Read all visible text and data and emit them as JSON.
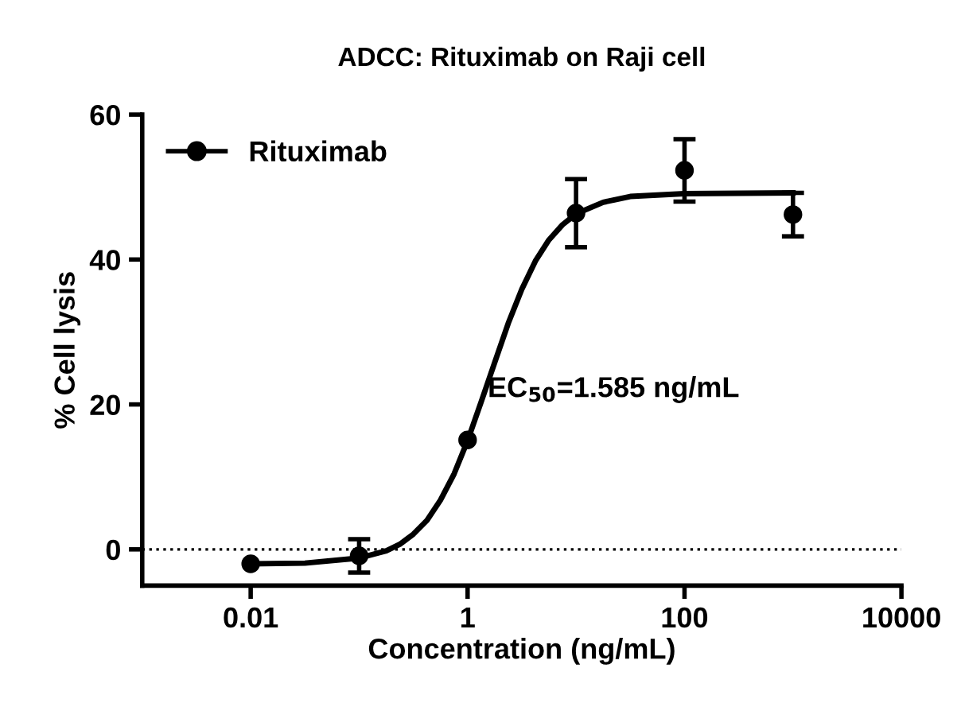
{
  "chart_data": {
    "type": "scatter",
    "title": "ADCC: Rituximab on Raji cell",
    "xlabel": "Concentration (ng/mL)",
    "ylabel": "% Cell lysis",
    "log": "x",
    "xlim": [
      0.001,
      10000
    ],
    "xticks": [
      0.01,
      1,
      100,
      10000
    ],
    "ylim": [
      -5,
      60
    ],
    "yticks": [
      0,
      20,
      40,
      60
    ],
    "grid": false,
    "legend": "top left",
    "series": [
      {
        "name": "Rituximab",
        "marker": "circle",
        "color": "#000000",
        "x": [
          0.01,
          0.1,
          1,
          10,
          100,
          1000
        ],
        "values": [
          -2,
          -0.9,
          15.1,
          46.4,
          52.3,
          46.2
        ],
        "errors": [
          null,
          2.3,
          null,
          4.7,
          4.3,
          3
        ]
      },
      {
        "type": "line",
        "marker": "none",
        "color": "#000000",
        "line_style": "solid",
        "x": [
          0.01,
          0.0316,
          0.1,
          0.178,
          0.237,
          0.316,
          0.422,
          0.562,
          0.75,
          1,
          1.33,
          1.78,
          2.37,
          3.16,
          4.22,
          5.62,
          7.5,
          10,
          17.8,
          31.6,
          100,
          1000
        ],
        "values": [
          -2,
          -1.9,
          -1.2,
          -0.2,
          0.7,
          2.1,
          4,
          6.8,
          10.4,
          15,
          20.3,
          25.8,
          31.2,
          35.9,
          39.8,
          42.7,
          44.8,
          46.3,
          47.9,
          48.7,
          49.1,
          49.2
        ]
      }
    ],
    "ref_lines": [
      {
        "axis": "y",
        "value": 0,
        "color": "#000000",
        "line_style": "dotted"
      }
    ],
    "annotations": [
      "EC$_{50}$=1.585 ng/mL"
    ]
  }
}
